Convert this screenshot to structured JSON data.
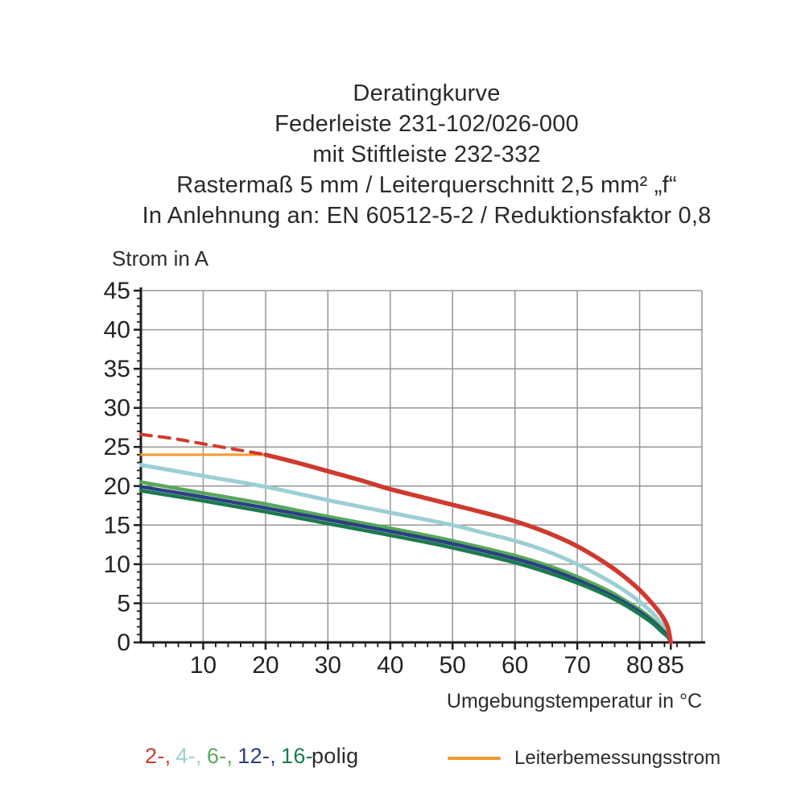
{
  "title": {
    "lines": [
      "Deratingkurve",
      "Federleiste 231-102/026-000",
      "mit Stiftleiste 232-332",
      "Rastermaß 5 mm / Leiterquerschnitt 2,5 mm² „f“",
      "In Anlehnung an: EN 60512-5-2 / Reduktionsfaktor 0,8"
    ]
  },
  "chart_data": {
    "type": "line",
    "title": "Deratingkurve Federleiste 231-102/026-000 mit Stiftleiste 232-332",
    "xlabel": "Umgebungstemperatur in °C",
    "ylabel": "Strom in A",
    "xlim": [
      0,
      90
    ],
    "ylim": [
      0,
      45
    ],
    "grid": true,
    "x_major_ticks": [
      10,
      20,
      30,
      40,
      50,
      60,
      70,
      80,
      85
    ],
    "x_gridlines": [
      10,
      20,
      30,
      40,
      50,
      60,
      70,
      80,
      90
    ],
    "x_minor_step": 2,
    "y_major_ticks": [
      0,
      5,
      10,
      15,
      20,
      25,
      30,
      35,
      40,
      45
    ],
    "y_gridlines": [
      5,
      10,
      15,
      20,
      25,
      30,
      35,
      40,
      45
    ],
    "y_minor_step": 1,
    "legend_position": "bottom",
    "series": [
      {
        "name": "Leiterbemessungsstrom",
        "color": "#f09a2e",
        "style": "solid",
        "width": 3,
        "points": [
          [
            0,
            24
          ],
          [
            20,
            24
          ]
        ]
      },
      {
        "name": "2-polig (oberhalb Leiterbemessungsstrom, gestrichelt)",
        "color": "#cf3a2e",
        "style": "dashed",
        "width": 4,
        "points": [
          [
            0,
            26.6
          ],
          [
            5,
            26.1
          ],
          [
            10,
            25.4
          ],
          [
            15,
            24.7
          ],
          [
            19.5,
            24.1
          ]
        ]
      },
      {
        "name": "4-polig",
        "color": "#9ccfd4",
        "style": "solid",
        "width": 5,
        "points": [
          [
            0,
            22.7
          ],
          [
            10,
            21.3
          ],
          [
            20,
            19.9
          ],
          [
            30,
            18.2
          ],
          [
            40,
            16.6
          ],
          [
            50,
            15.0
          ],
          [
            55,
            14.0
          ],
          [
            60,
            13.0
          ],
          [
            65,
            11.7
          ],
          [
            70,
            10.0
          ],
          [
            75,
            7.9
          ],
          [
            78,
            6.4
          ],
          [
            80,
            5.2
          ],
          [
            82,
            3.8
          ],
          [
            83.5,
            2.4
          ],
          [
            84.5,
            1.2
          ],
          [
            85,
            0
          ]
        ]
      },
      {
        "name": "6-polig",
        "color": "#57a75a",
        "style": "solid",
        "width": 4.5,
        "points": [
          [
            0,
            20.5
          ],
          [
            10,
            19.1
          ],
          [
            20,
            17.7
          ],
          [
            30,
            16.1
          ],
          [
            40,
            14.6
          ],
          [
            50,
            13.0
          ],
          [
            60,
            11.1
          ],
          [
            65,
            9.9
          ],
          [
            70,
            8.4
          ],
          [
            75,
            6.6
          ],
          [
            78,
            5.2
          ],
          [
            80,
            4.2
          ],
          [
            82,
            3.0
          ],
          [
            83.5,
            1.8
          ],
          [
            84.5,
            0.9
          ],
          [
            85,
            0
          ]
        ]
      },
      {
        "name": "12-polig",
        "color": "#2b4084",
        "style": "solid",
        "width": 4.5,
        "points": [
          [
            0,
            19.9
          ],
          [
            10,
            18.6
          ],
          [
            20,
            17.2
          ],
          [
            30,
            15.7
          ],
          [
            40,
            14.2
          ],
          [
            50,
            12.6
          ],
          [
            60,
            10.7
          ],
          [
            65,
            9.5
          ],
          [
            70,
            8.0
          ],
          [
            75,
            6.2
          ],
          [
            78,
            4.9
          ],
          [
            80,
            3.9
          ],
          [
            82,
            2.7
          ],
          [
            83.5,
            1.6
          ],
          [
            84.5,
            0.8
          ],
          [
            85,
            0
          ]
        ]
      },
      {
        "name": "16-polig",
        "color": "#1c7a4d",
        "style": "solid",
        "width": 4.5,
        "points": [
          [
            0,
            19.4
          ],
          [
            10,
            18.1
          ],
          [
            20,
            16.7
          ],
          [
            30,
            15.2
          ],
          [
            40,
            13.7
          ],
          [
            50,
            12.1
          ],
          [
            60,
            10.2
          ],
          [
            65,
            9.0
          ],
          [
            70,
            7.6
          ],
          [
            75,
            5.9
          ],
          [
            78,
            4.6
          ],
          [
            80,
            3.6
          ],
          [
            82,
            2.5
          ],
          [
            83.5,
            1.4
          ],
          [
            84.5,
            0.7
          ],
          [
            85,
            0
          ]
        ]
      },
      {
        "name": "2-polig",
        "color": "#cf3a2e",
        "style": "solid",
        "width": 5.5,
        "points": [
          [
            20,
            24.0
          ],
          [
            25,
            23.0
          ],
          [
            30,
            21.9
          ],
          [
            35,
            20.8
          ],
          [
            40,
            19.6
          ],
          [
            45,
            18.6
          ],
          [
            50,
            17.6
          ],
          [
            55,
            16.6
          ],
          [
            60,
            15.5
          ],
          [
            65,
            14.1
          ],
          [
            70,
            12.3
          ],
          [
            75,
            9.9
          ],
          [
            78,
            8.1
          ],
          [
            80,
            6.7
          ],
          [
            82,
            5.0
          ],
          [
            83.5,
            3.5
          ],
          [
            84.5,
            2.0
          ],
          [
            85,
            0
          ]
        ]
      }
    ]
  },
  "legend": {
    "poles": {
      "items": [
        {
          "text": "2-,",
          "color": "#cf3a2e"
        },
        {
          "text": "4-,",
          "color": "#9ccfd4"
        },
        {
          "text": "6-,",
          "color": "#57a75a"
        },
        {
          "text": "12-,",
          "color": "#2b4084"
        },
        {
          "text": "16-",
          "color": "#1c7a4d"
        }
      ],
      "suffix": "polig",
      "suffix_color": "#2b2b2b"
    },
    "rated": {
      "label": "Leiterbemessungsstrom",
      "color": "#f09a2e"
    }
  },
  "style": {
    "grid_color": "#969696",
    "axis_color": "#1d1d1d",
    "tick_label_color": "#232323"
  }
}
